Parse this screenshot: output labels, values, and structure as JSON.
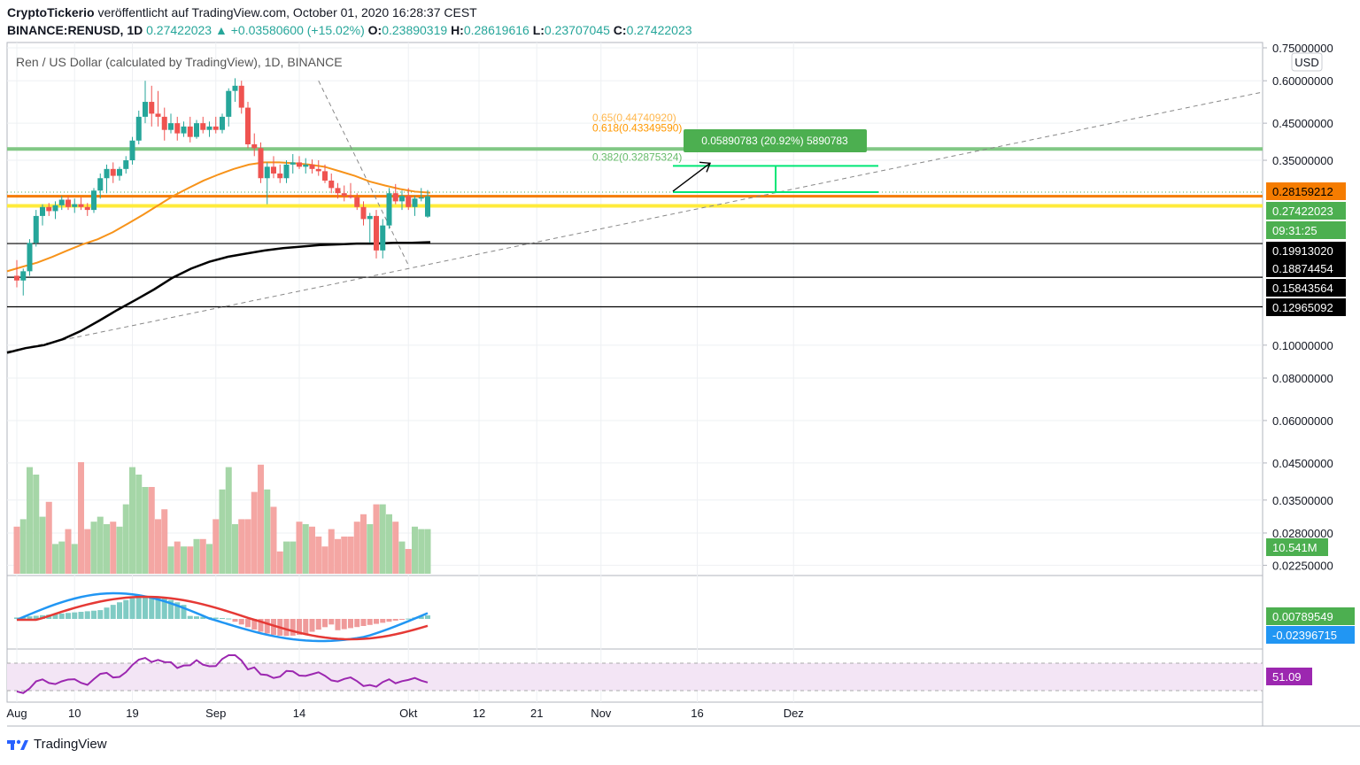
{
  "header": {
    "author": "CryptoTickerio",
    "published": "veröffentlicht auf TradingView.com, October 01, 2020 16:28:37 CEST",
    "symbol": "BINANCE:RENUSD, 1D",
    "last": "0.27422023",
    "change": "▲ +0.03580600 (+15.02%)",
    "o_label": "O:",
    "o": "0.23890319",
    "h_label": "H:",
    "h": "0.28619616",
    "l_label": "L:",
    "l": "0.23707045",
    "c_label": "C:",
    "c": "0.27422023"
  },
  "chart_title": "Ren / US Dollar (calculated by TradingView), 1D, BINANCE",
  "currency": "USD",
  "colors": {
    "up": "#26a69a",
    "down": "#ef5350",
    "ma_orange": "#f7931a",
    "ma_black": "#000000",
    "level_orange": "#f57c00",
    "level_yellow": "#ffeb3b",
    "level_green": "#66bb6a",
    "macd_blue": "#2196f3",
    "signal_red": "#e53935",
    "rsi": "#9c27b0",
    "fib": "#ff9800",
    "fib_green": "#4caf50"
  },
  "footer": {
    "brand": "TradingView"
  },
  "chart_data": {
    "type": "candlestick",
    "title": "Ren / US Dollar (calculated by TradingView), 1D, BINANCE",
    "yscale": "log",
    "price_ticks": [
      "0.75000000",
      "0.60000000",
      "0.45000000",
      "0.35000000",
      "0.10000000",
      "0.08000000",
      "0.06000000",
      "0.04500000",
      "0.03500000",
      "0.02800000",
      "0.02250000"
    ],
    "price_tick_values": [
      0.75,
      0.6,
      0.45,
      0.35,
      0.1,
      0.08,
      0.06,
      0.045,
      0.035,
      0.028,
      0.0225
    ],
    "x_ticks": [
      "Aug",
      "10",
      "19",
      "Sep",
      "14",
      "Okt",
      "12",
      "21",
      "Nov",
      "16",
      "Dez"
    ],
    "x_tick_day_index": [
      0,
      9,
      18,
      31,
      44,
      61,
      72,
      81,
      91,
      106,
      121
    ],
    "ylim": [
      0.0215,
      0.75
    ],
    "price_labels": [
      {
        "text": "0.28159212",
        "value": 0.28159212,
        "style": "orange"
      },
      {
        "text": "0.27422023",
        "value": 0.27422023,
        "style": "green"
      },
      {
        "text": "09:31:25",
        "value": 0.2575,
        "style": "green"
      },
      {
        "text": "0.19913020",
        "value": 0.1991302,
        "style": "black"
      },
      {
        "text": "0.18874454",
        "value": 0.18874454,
        "style": "black"
      },
      {
        "text": "0.15843564",
        "value": 0.15843564,
        "style": "black"
      },
      {
        "text": "0.12965092",
        "value": 0.12965092,
        "style": "black"
      }
    ],
    "horizontal_levels": [
      {
        "value": 0.378,
        "color": "green"
      },
      {
        "value": 0.282,
        "color": "orange_dotted"
      },
      {
        "value": 0.2743,
        "color": "orange"
      },
      {
        "value": 0.257,
        "color": "yellow"
      },
      {
        "value": 0.1991,
        "color": "black"
      },
      {
        "value": 0.1584,
        "color": "black"
      },
      {
        "value": 0.1297,
        "color": "black"
      }
    ],
    "fib_labels": [
      {
        "text": "0.618(0.43349590)",
        "value": 0.4335
      },
      {
        "text": "0.65(0.44740920)",
        "value": 0.4474
      },
      {
        "text": "0.382(0.32875324)",
        "value": 0.3288
      }
    ],
    "measure_label": "0.05890783 (20.92%) 5890783",
    "candles": [
      [
        0.16,
        0.178,
        0.148,
        0.155
      ],
      [
        0.155,
        0.168,
        0.14,
        0.165
      ],
      [
        0.165,
        0.205,
        0.16,
        0.2
      ],
      [
        0.2,
        0.25,
        0.195,
        0.24
      ],
      [
        0.24,
        0.26,
        0.225,
        0.255
      ],
      [
        0.255,
        0.262,
        0.24,
        0.248
      ],
      [
        0.248,
        0.265,
        0.235,
        0.258
      ],
      [
        0.258,
        0.275,
        0.25,
        0.268
      ],
      [
        0.268,
        0.275,
        0.25,
        0.255
      ],
      [
        0.255,
        0.27,
        0.245,
        0.26
      ],
      [
        0.26,
        0.272,
        0.25,
        0.255
      ],
      [
        0.255,
        0.262,
        0.24,
        0.25
      ],
      [
        0.25,
        0.29,
        0.245,
        0.285
      ],
      [
        0.285,
        0.32,
        0.27,
        0.31
      ],
      [
        0.31,
        0.34,
        0.28,
        0.33
      ],
      [
        0.33,
        0.345,
        0.3,
        0.315
      ],
      [
        0.315,
        0.335,
        0.305,
        0.33
      ],
      [
        0.33,
        0.36,
        0.32,
        0.35
      ],
      [
        0.35,
        0.41,
        0.34,
        0.4
      ],
      [
        0.4,
        0.49,
        0.39,
        0.47
      ],
      [
        0.47,
        0.6,
        0.45,
        0.52
      ],
      [
        0.52,
        0.58,
        0.44,
        0.48
      ],
      [
        0.48,
        0.56,
        0.44,
        0.47
      ],
      [
        0.47,
        0.5,
        0.4,
        0.43
      ],
      [
        0.43,
        0.48,
        0.42,
        0.45
      ],
      [
        0.45,
        0.47,
        0.4,
        0.42
      ],
      [
        0.42,
        0.455,
        0.41,
        0.44
      ],
      [
        0.44,
        0.47,
        0.395,
        0.41
      ],
      [
        0.41,
        0.46,
        0.405,
        0.45
      ],
      [
        0.45,
        0.47,
        0.42,
        0.43
      ],
      [
        0.43,
        0.455,
        0.41,
        0.44
      ],
      [
        0.44,
        0.47,
        0.42,
        0.43
      ],
      [
        0.43,
        0.48,
        0.42,
        0.47
      ],
      [
        0.47,
        0.57,
        0.44,
        0.56
      ],
      [
        0.56,
        0.61,
        0.52,
        0.58
      ],
      [
        0.58,
        0.6,
        0.48,
        0.5
      ],
      [
        0.5,
        0.52,
        0.38,
        0.39
      ],
      [
        0.39,
        0.42,
        0.36,
        0.38
      ],
      [
        0.38,
        0.395,
        0.3,
        0.31
      ],
      [
        0.31,
        0.345,
        0.26,
        0.335
      ],
      [
        0.335,
        0.36,
        0.31,
        0.32
      ],
      [
        0.32,
        0.34,
        0.3,
        0.31
      ],
      [
        0.31,
        0.35,
        0.3,
        0.34
      ],
      [
        0.34,
        0.365,
        0.32,
        0.345
      ],
      [
        0.345,
        0.36,
        0.33,
        0.335
      ],
      [
        0.335,
        0.355,
        0.32,
        0.34
      ],
      [
        0.34,
        0.352,
        0.32,
        0.33
      ],
      [
        0.33,
        0.35,
        0.315,
        0.325
      ],
      [
        0.325,
        0.34,
        0.3,
        0.305
      ],
      [
        0.305,
        0.32,
        0.28,
        0.29
      ],
      [
        0.29,
        0.3,
        0.27,
        0.28
      ],
      [
        0.28,
        0.295,
        0.265,
        0.275
      ],
      [
        0.275,
        0.3,
        0.27,
        0.272
      ],
      [
        0.272,
        0.28,
        0.25,
        0.255
      ],
      [
        0.255,
        0.265,
        0.225,
        0.235
      ],
      [
        0.235,
        0.245,
        0.2,
        0.24
      ],
      [
        0.24,
        0.25,
        0.18,
        0.19
      ],
      [
        0.19,
        0.235,
        0.18,
        0.225
      ],
      [
        0.225,
        0.29,
        0.22,
        0.28
      ],
      [
        0.28,
        0.298,
        0.26,
        0.265
      ],
      [
        0.265,
        0.285,
        0.25,
        0.275
      ],
      [
        0.275,
        0.29,
        0.25,
        0.255
      ],
      [
        0.255,
        0.275,
        0.24,
        0.27
      ],
      [
        0.27,
        0.29,
        0.265,
        0.272
      ],
      [
        0.23890319,
        0.28619616,
        0.23707045,
        0.27422023
      ]
    ],
    "ma50": [
      0.165,
      0.17,
      0.175,
      0.182,
      0.19,
      0.198,
      0.205,
      0.215,
      0.228,
      0.242,
      0.258,
      0.275,
      0.29,
      0.305,
      0.318,
      0.33,
      0.34,
      0.345,
      0.345,
      0.343,
      0.34,
      0.335,
      0.325,
      0.315,
      0.303,
      0.295,
      0.288,
      0.283,
      0.281
    ],
    "ma200": [
      0.095,
      0.098,
      0.1,
      0.104,
      0.11,
      0.118,
      0.127,
      0.136,
      0.146,
      0.158,
      0.168,
      0.176,
      0.182,
      0.186,
      0.19,
      0.193,
      0.195,
      0.197,
      0.198,
      0.199,
      0.199,
      0.2,
      0.2,
      0.201
    ],
    "volume": {
      "values": [
        0.38,
        0.44,
        0.86,
        0.8,
        0.46,
        0.58,
        0.24,
        0.26,
        0.36,
        0.24,
        0.9,
        0.36,
        0.42,
        0.46,
        0.4,
        0.42,
        0.38,
        0.56,
        0.86,
        0.8,
        0.7,
        0.7,
        0.44,
        0.52,
        0.22,
        0.26,
        0.22,
        0.22,
        0.28,
        0.28,
        0.24,
        0.44,
        0.68,
        0.86,
        0.4,
        0.44,
        0.44,
        0.66,
        0.88,
        0.68,
        0.54,
        0.18,
        0.26,
        0.26,
        0.42,
        0.4,
        0.38,
        0.3,
        0.22,
        0.36,
        0.28,
        0.3,
        0.3,
        0.42,
        0.48,
        0.4,
        0.56,
        0.56,
        0.48,
        0.42,
        0.26,
        0.2,
        0.38,
        0.36,
        0.36,
        0.36
      ],
      "last_label": "10.541M"
    },
    "macd": {
      "hist_label": "0.00789549",
      "macd_label": "-0.02396715"
    },
    "rsi": {
      "label": "51.09"
    }
  }
}
